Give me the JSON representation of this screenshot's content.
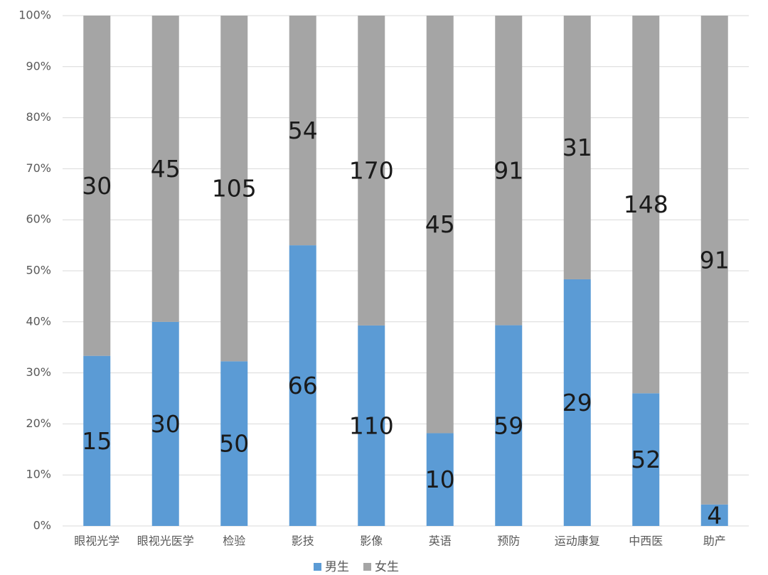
{
  "chart_data": {
    "type": "bar",
    "stacking": "percent",
    "categories": [
      "眼视光学",
      "眼视光医学",
      "检验",
      "影技",
      "影像",
      "英语",
      "预防",
      "运动康复",
      "中西医",
      "助产"
    ],
    "series": [
      {
        "name": "男生",
        "color": "#5b9bd5",
        "values": [
          15,
          30,
          50,
          66,
          110,
          10,
          59,
          29,
          52,
          4
        ]
      },
      {
        "name": "女生",
        "color": "#a5a5a5",
        "values": [
          30,
          45,
          105,
          54,
          170,
          45,
          91,
          31,
          148,
          91
        ]
      }
    ],
    "ylim": [
      0,
      100
    ],
    "yticks": [
      {
        "value": 0,
        "label": "0%"
      },
      {
        "value": 10,
        "label": "10%"
      },
      {
        "value": 20,
        "label": "20%"
      },
      {
        "value": 30,
        "label": "30%"
      },
      {
        "value": 40,
        "label": "40%"
      },
      {
        "value": 50,
        "label": "50%"
      },
      {
        "value": 60,
        "label": "60%"
      },
      {
        "value": 70,
        "label": "70%"
      },
      {
        "value": 80,
        "label": "80%"
      },
      {
        "value": 90,
        "label": "90%"
      },
      {
        "value": 100,
        "label": "100%"
      }
    ],
    "grid": true,
    "legend": "bottom"
  }
}
